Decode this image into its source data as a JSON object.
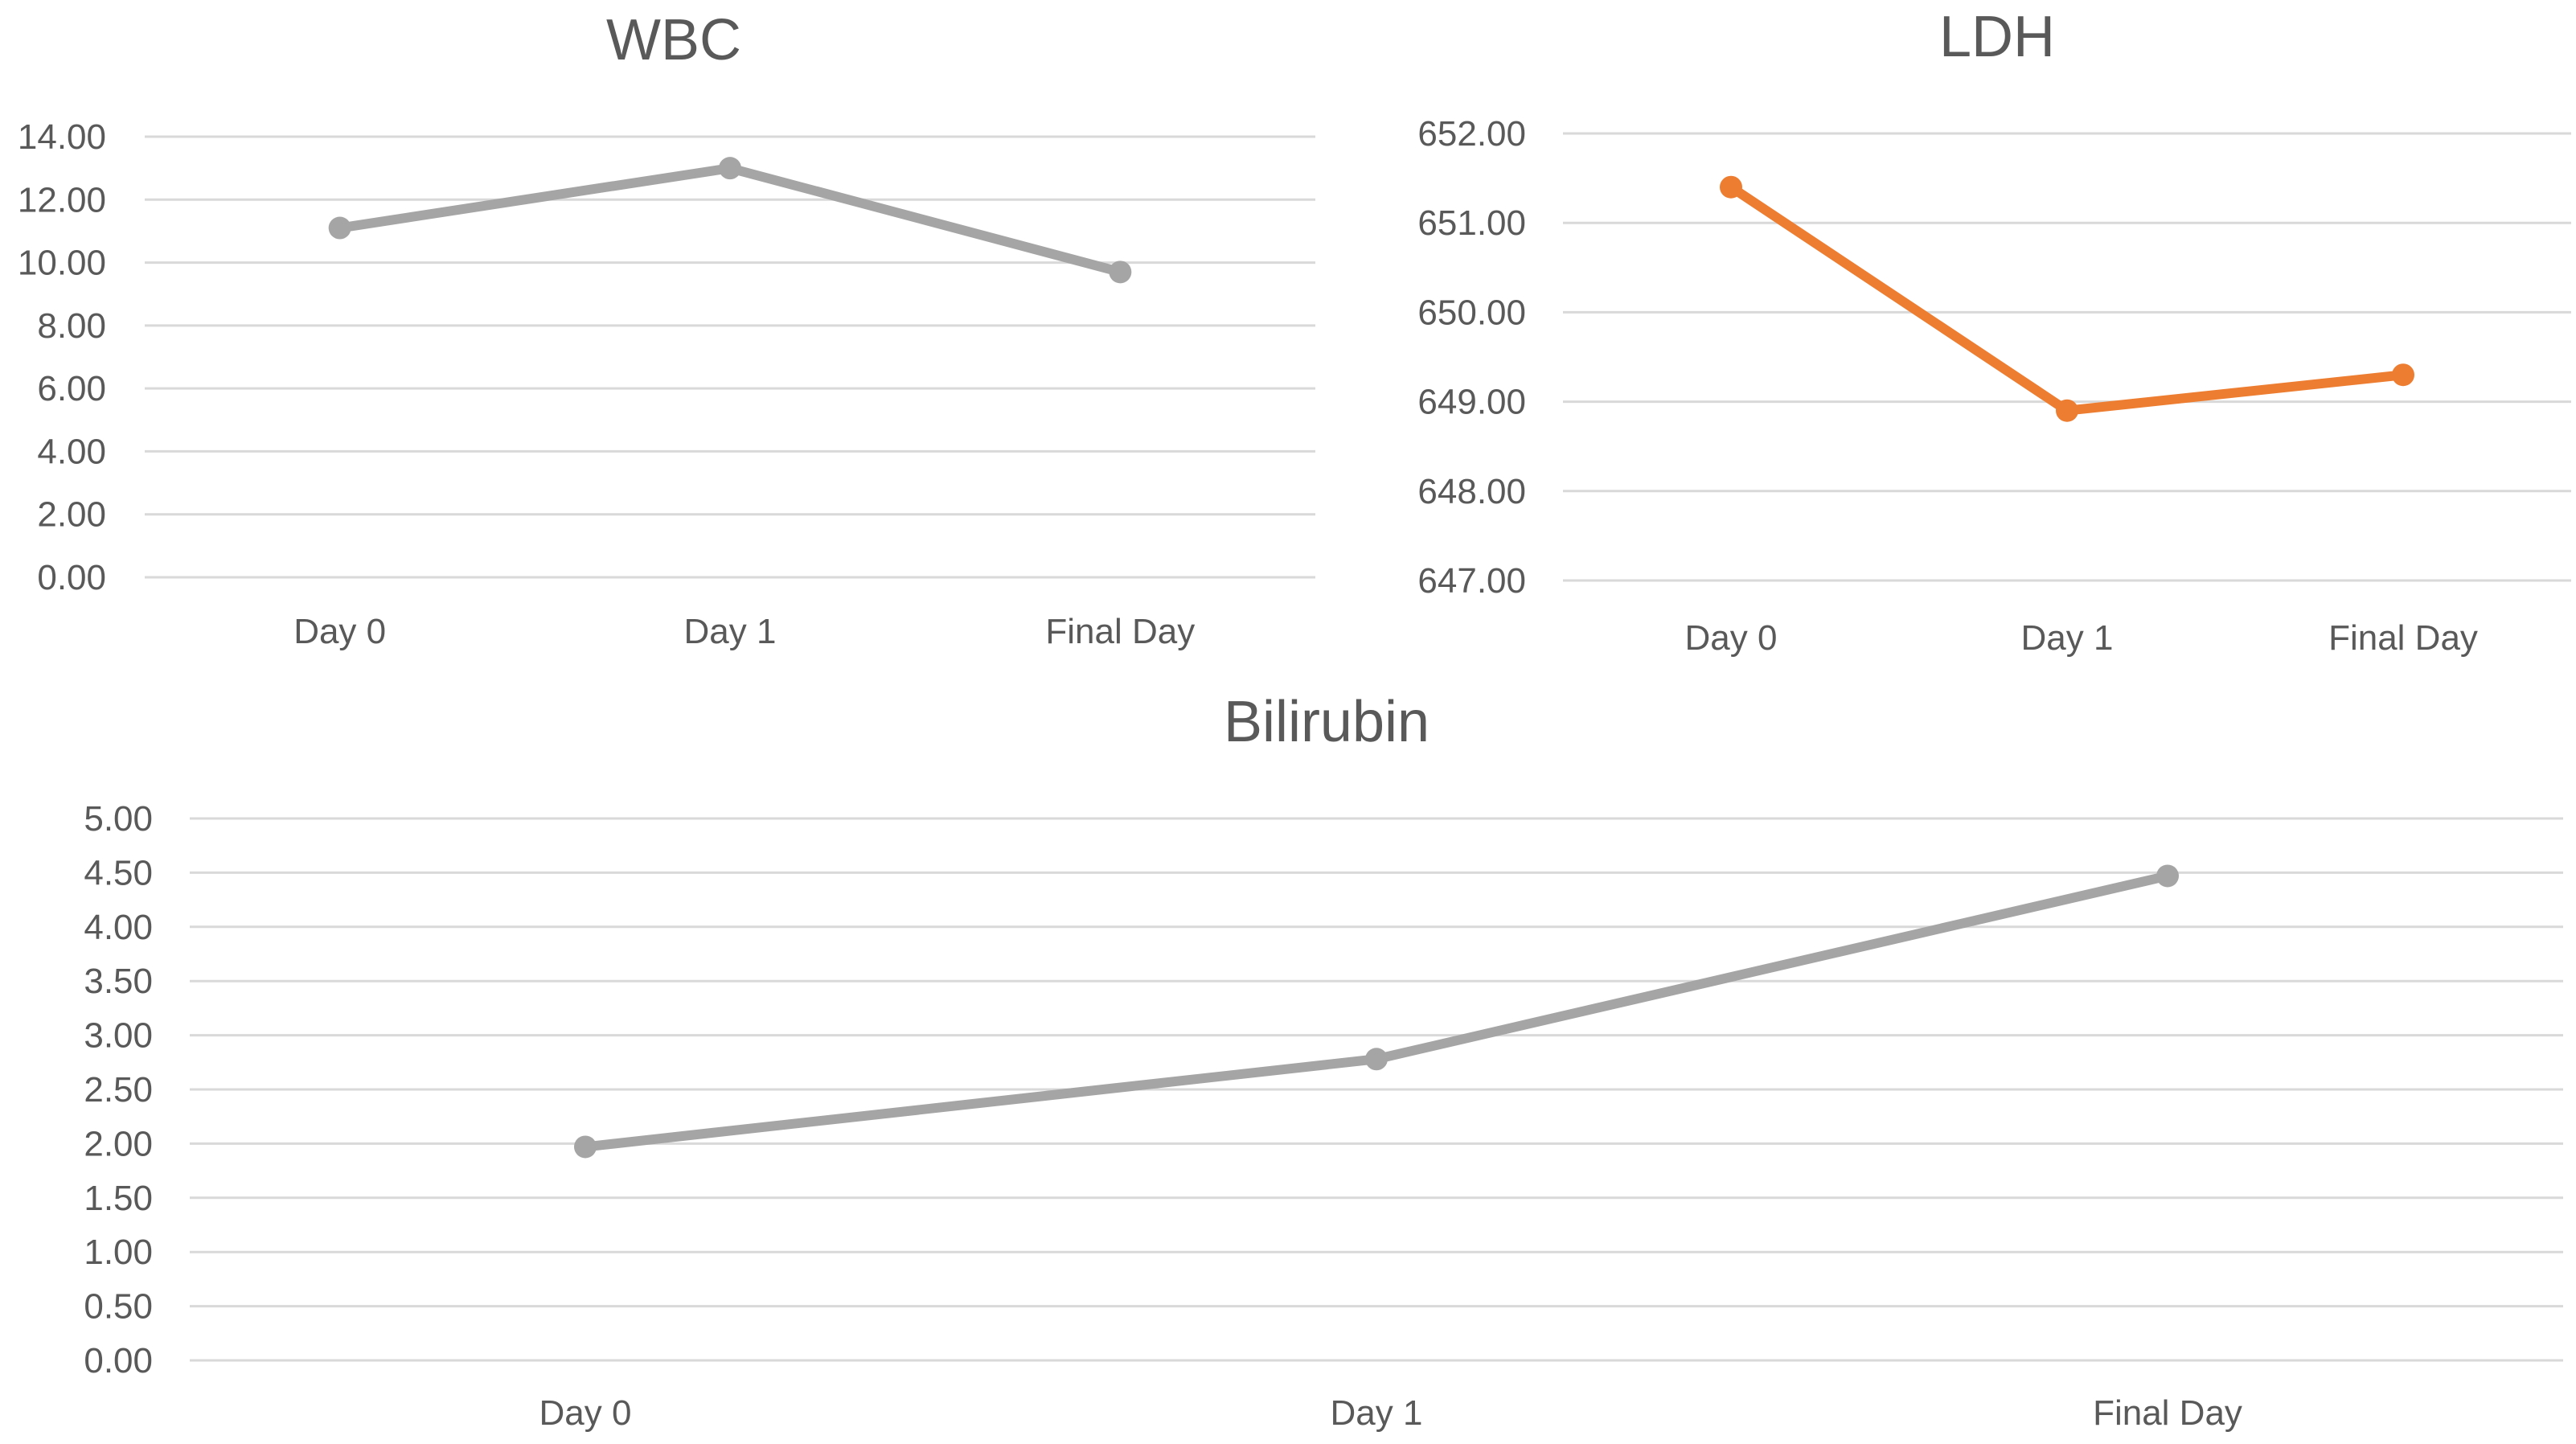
{
  "chart_data": [
    {
      "type": "line",
      "title": "WBC",
      "categories": [
        "Day 0",
        "Day 1",
        "Final Day"
      ],
      "series": [
        {
          "values": [
            11.1,
            13.0,
            9.7
          ],
          "color": "#a5a5a5"
        }
      ],
      "ylim": [
        0,
        14
      ],
      "yticks": [
        "0.00",
        "2.00",
        "4.00",
        "6.00",
        "8.00",
        "10.00",
        "12.00",
        "14.00"
      ],
      "grid": true,
      "legend": "none"
    },
    {
      "type": "line",
      "title": "LDH",
      "categories": [
        "Day 0",
        "Day 1",
        "Final Day"
      ],
      "series": [
        {
          "values": [
            651.4,
            648.9,
            649.3
          ],
          "color": "#ed7d31"
        }
      ],
      "ylim": [
        647,
        652
      ],
      "yticks": [
        "647.00",
        "648.00",
        "649.00",
        "650.00",
        "651.00",
        "652.00"
      ],
      "grid": true,
      "legend": "none"
    },
    {
      "type": "line",
      "title": "Bilirubin",
      "categories": [
        "Day 0",
        "Day 1",
        "Final Day"
      ],
      "series": [
        {
          "values": [
            1.97,
            2.78,
            4.47
          ],
          "color": "#a5a5a5"
        }
      ],
      "ylim": [
        0,
        5
      ],
      "yticks": [
        "0.00",
        "0.50",
        "1.00",
        "1.50",
        "2.00",
        "2.50",
        "3.00",
        "3.50",
        "4.00",
        "4.50",
        "5.00"
      ],
      "grid": true,
      "legend": "none"
    }
  ]
}
